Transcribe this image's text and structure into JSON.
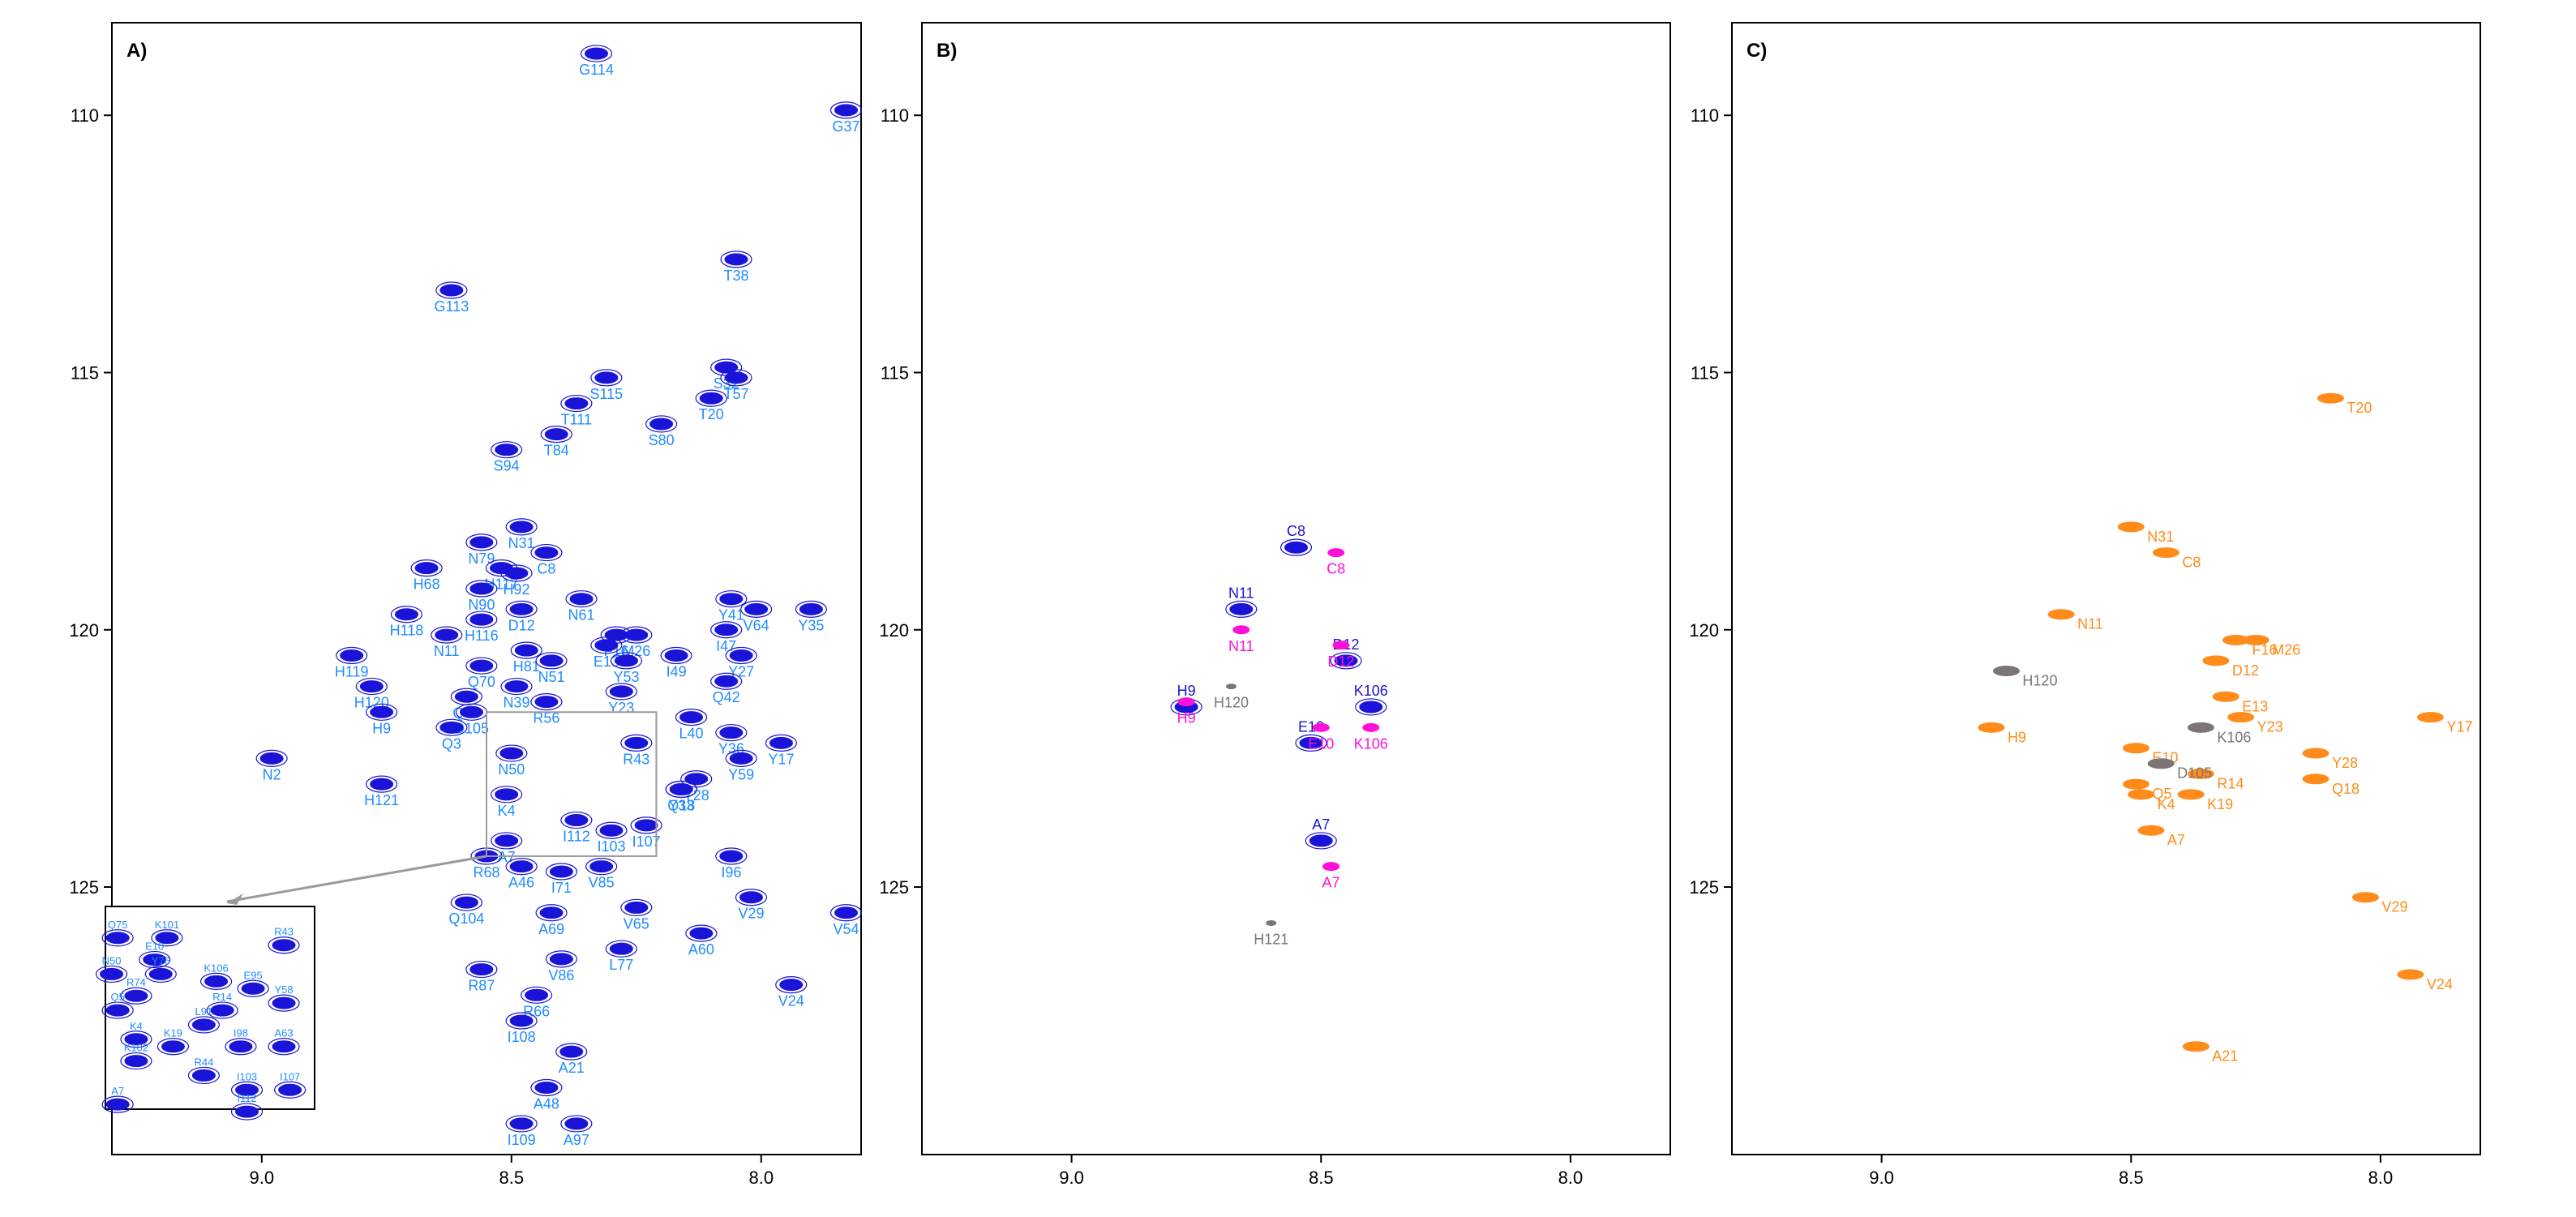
{
  "figure": {
    "x_ticks": [
      "9.0",
      "8.5",
      "8.0"
    ],
    "y_ticks": [
      "110",
      "115",
      "120",
      "125"
    ]
  },
  "colors": {
    "blue": "#1a14d8",
    "magenta": "#ff10d8",
    "label_blue": "#1e8cff",
    "label_darkblue": "#1a14c8",
    "grey": "#7b7575",
    "orange": "#ff8c1a",
    "inset_frame": "#9a9a9a"
  },
  "chart_data": [
    {
      "type": "scatter",
      "panel_label": "A)",
      "xlim": [
        9.3,
        7.8
      ],
      "ylim": [
        130.2,
        108.2
      ],
      "x_ticks": [
        9.0,
        8.5,
        8.0
      ],
      "y_ticks": [
        110,
        115,
        120,
        125
      ],
      "series": [
        {
          "color": "#1a14d8",
          "points": [
            {
              "label": "G114",
              "x": 8.33,
              "y": 108.8
            },
            {
              "label": "G37",
              "x": 7.83,
              "y": 109.9
            },
            {
              "label": "G113",
              "x": 8.62,
              "y": 113.4
            },
            {
              "label": "T38",
              "x": 8.05,
              "y": 112.8
            },
            {
              "label": "S115",
              "x": 8.31,
              "y": 115.1
            },
            {
              "label": "S32",
              "x": 8.07,
              "y": 114.9
            },
            {
              "label": "T111",
              "x": 8.37,
              "y": 115.6
            },
            {
              "label": "T57",
              "x": 8.05,
              "y": 115.1
            },
            {
              "label": "T84",
              "x": 8.41,
              "y": 116.2
            },
            {
              "label": "T20",
              "x": 8.1,
              "y": 115.5
            },
            {
              "label": "S94",
              "x": 8.51,
              "y": 116.5
            },
            {
              "label": "S80",
              "x": 8.2,
              "y": 116.0
            },
            {
              "label": "N31",
              "x": 8.48,
              "y": 118.0
            },
            {
              "label": "N79",
              "x": 8.56,
              "y": 118.3
            },
            {
              "label": "C8",
              "x": 8.43,
              "y": 118.5
            },
            {
              "label": "H68",
              "x": 8.67,
              "y": 118.8
            },
            {
              "label": "H117",
              "x": 8.52,
              "y": 118.8
            },
            {
              "label": "H92",
              "x": 8.49,
              "y": 118.9
            },
            {
              "label": "N90",
              "x": 8.56,
              "y": 119.2
            },
            {
              "label": "N61",
              "x": 8.36,
              "y": 119.4
            },
            {
              "label": "Y41",
              "x": 8.06,
              "y": 119.4
            },
            {
              "label": "Y35",
              "x": 7.9,
              "y": 119.6
            },
            {
              "label": "H118",
              "x": 8.71,
              "y": 119.7
            },
            {
              "label": "H116",
              "x": 8.56,
              "y": 119.8
            },
            {
              "label": "D12",
              "x": 8.48,
              "y": 119.6
            },
            {
              "label": "F16",
              "x": 8.29,
              "y": 120.1
            },
            {
              "label": "M26",
              "x": 8.25,
              "y": 120.1
            },
            {
              "label": "I47",
              "x": 8.07,
              "y": 120.0
            },
            {
              "label": "V64",
              "x": 8.01,
              "y": 119.6
            },
            {
              "label": "H119",
              "x": 8.82,
              "y": 120.5
            },
            {
              "label": "N11",
              "x": 8.63,
              "y": 120.1
            },
            {
              "label": "H81",
              "x": 8.47,
              "y": 120.4
            },
            {
              "label": "E13",
              "x": 8.31,
              "y": 120.3
            },
            {
              "label": "N51",
              "x": 8.42,
              "y": 120.6
            },
            {
              "label": "I49",
              "x": 8.17,
              "y": 120.5
            },
            {
              "label": "Y27",
              "x": 8.04,
              "y": 120.5
            },
            {
              "label": "Q70",
              "x": 8.56,
              "y": 120.7
            },
            {
              "label": "Y53",
              "x": 8.27,
              "y": 120.6
            },
            {
              "label": "N39",
              "x": 8.49,
              "y": 121.1
            },
            {
              "label": "Q42",
              "x": 8.07,
              "y": 121.0
            },
            {
              "label": "H120",
              "x": 8.78,
              "y": 121.1
            },
            {
              "label": "Q73",
              "x": 8.59,
              "y": 121.3
            },
            {
              "label": "R56",
              "x": 8.43,
              "y": 121.4
            },
            {
              "label": "Y23",
              "x": 8.28,
              "y": 121.2
            },
            {
              "label": "H9",
              "x": 8.76,
              "y": 121.6
            },
            {
              "label": "D105",
              "x": 8.58,
              "y": 121.6
            },
            {
              "label": "L40",
              "x": 8.14,
              "y": 121.7
            },
            {
              "label": "Y36",
              "x": 8.06,
              "y": 122.0
            },
            {
              "label": "Y17",
              "x": 7.96,
              "y": 122.2
            },
            {
              "label": "Q3",
              "x": 8.62,
              "y": 121.9
            },
            {
              "label": "R43",
              "x": 8.25,
              "y": 122.2
            },
            {
              "label": "N2",
              "x": 8.98,
              "y": 122.5
            },
            {
              "label": "N50",
              "x": 8.5,
              "y": 122.4
            },
            {
              "label": "Y59",
              "x": 8.04,
              "y": 122.5
            },
            {
              "label": "H121",
              "x": 8.76,
              "y": 123.0
            },
            {
              "label": "Y33",
              "x": 8.16,
              "y": 123.1
            },
            {
              "label": "Y28",
              "x": 8.13,
              "y": 122.9
            },
            {
              "label": "Q18",
              "x": 8.16,
              "y": 123.1
            },
            {
              "label": "K4",
              "x": 8.51,
              "y": 123.2
            },
            {
              "label": "I107",
              "x": 8.23,
              "y": 123.8
            },
            {
              "label": "I112",
              "x": 8.37,
              "y": 123.7
            },
            {
              "label": "I103",
              "x": 8.3,
              "y": 123.9
            },
            {
              "label": "A7",
              "x": 8.51,
              "y": 124.1
            },
            {
              "label": "R68",
              "x": 8.55,
              "y": 124.4
            },
            {
              "label": "I96",
              "x": 8.06,
              "y": 124.4
            },
            {
              "label": "A46",
              "x": 8.48,
              "y": 124.6
            },
            {
              "label": "I71",
              "x": 8.4,
              "y": 124.7
            },
            {
              "label": "V85",
              "x": 8.32,
              "y": 124.6
            },
            {
              "label": "Q104",
              "x": 8.59,
              "y": 125.3
            },
            {
              "label": "V65",
              "x": 8.25,
              "y": 125.4
            },
            {
              "label": "A69",
              "x": 8.42,
              "y": 125.5
            },
            {
              "label": "V29",
              "x": 8.02,
              "y": 125.2
            },
            {
              "label": "V54",
              "x": 7.83,
              "y": 125.5
            },
            {
              "label": "R87",
              "x": 8.56,
              "y": 126.6
            },
            {
              "label": "V86",
              "x": 8.4,
              "y": 126.4
            },
            {
              "label": "L77",
              "x": 8.28,
              "y": 126.2
            },
            {
              "label": "A60",
              "x": 8.12,
              "y": 125.9
            },
            {
              "label": "R66",
              "x": 8.45,
              "y": 127.1
            },
            {
              "label": "V24",
              "x": 7.94,
              "y": 126.9
            },
            {
              "label": "I108",
              "x": 8.48,
              "y": 127.6
            },
            {
              "label": "A21",
              "x": 8.38,
              "y": 128.2
            },
            {
              "label": "A48",
              "x": 8.43,
              "y": 128.9
            },
            {
              "label": "I109",
              "x": 8.48,
              "y": 129.6
            },
            {
              "label": "A97",
              "x": 8.37,
              "y": 129.6
            }
          ]
        }
      ],
      "inset": {
        "x_range": [
          8.55,
          8.21
        ],
        "y_range": [
          121.6,
          124.4
        ],
        "labels": [
          {
            "label": "Q75",
            "x": 8.53,
            "y": 121.9
          },
          {
            "label": "K101",
            "x": 8.45,
            "y": 121.9
          },
          {
            "label": "R43",
            "x": 8.26,
            "y": 122.0
          },
          {
            "label": "E10",
            "x": 8.47,
            "y": 122.2
          },
          {
            "label": "N50",
            "x": 8.54,
            "y": 122.4
          },
          {
            "label": "Y76",
            "x": 8.46,
            "y": 122.4
          },
          {
            "label": "K106",
            "x": 8.37,
            "y": 122.5
          },
          {
            "label": "E95",
            "x": 8.31,
            "y": 122.6
          },
          {
            "label": "R74",
            "x": 8.5,
            "y": 122.7
          },
          {
            "label": "Y58",
            "x": 8.26,
            "y": 122.8
          },
          {
            "label": "Q5",
            "x": 8.53,
            "y": 122.9
          },
          {
            "label": "R14",
            "x": 8.36,
            "y": 122.9
          },
          {
            "label": "L91",
            "x": 8.39,
            "y": 123.1
          },
          {
            "label": "K4",
            "x": 8.5,
            "y": 123.3
          },
          {
            "label": "K19",
            "x": 8.44,
            "y": 123.4
          },
          {
            "label": "I98",
            "x": 8.33,
            "y": 123.4
          },
          {
            "label": "A63",
            "x": 8.26,
            "y": 123.4
          },
          {
            "label": "K102",
            "x": 8.5,
            "y": 123.6
          },
          {
            "label": "R44",
            "x": 8.39,
            "y": 123.8
          },
          {
            "label": "I103",
            "x": 8.32,
            "y": 124.0
          },
          {
            "label": "I107",
            "x": 8.25,
            "y": 124.0
          },
          {
            "label": "A7",
            "x": 8.53,
            "y": 124.2
          },
          {
            "label": "I112",
            "x": 8.32,
            "y": 124.3
          }
        ]
      }
    },
    {
      "type": "scatter",
      "panel_label": "B)",
      "xlim": [
        9.3,
        7.8
      ],
      "ylim": [
        130.2,
        108.2
      ],
      "x_ticks": [
        9.0,
        8.5,
        8.0
      ],
      "y_ticks": [
        110,
        115,
        120,
        125
      ],
      "series": [
        {
          "color": "#1a14d8",
          "points": [
            {
              "label": "C8",
              "x": 8.55,
              "y": 118.4
            },
            {
              "label": "N11",
              "x": 8.66,
              "y": 119.6
            },
            {
              "label": "D12",
              "x": 8.45,
              "y": 120.6
            },
            {
              "label": "H9",
              "x": 8.77,
              "y": 121.5
            },
            {
              "label": "K106",
              "x": 8.4,
              "y": 121.5
            },
            {
              "label": "E10",
              "x": 8.52,
              "y": 122.2
            },
            {
              "label": "A7",
              "x": 8.5,
              "y": 124.1
            }
          ]
        },
        {
          "color": "#ff10d8",
          "points": [
            {
              "label": "C8",
              "x": 8.47,
              "y": 118.5
            },
            {
              "label": "N11",
              "x": 8.66,
              "y": 120.0
            },
            {
              "label": "D12",
              "x": 8.46,
              "y": 120.3
            },
            {
              "label": "H9",
              "x": 8.77,
              "y": 121.4
            },
            {
              "label": "E10",
              "x": 8.5,
              "y": 121.9
            },
            {
              "label": "K106",
              "x": 8.4,
              "y": 121.9
            },
            {
              "label": "A7",
              "x": 8.48,
              "y": 124.6
            }
          ]
        },
        {
          "color": "#7b7575",
          "points": [
            {
              "label": "H120",
              "x": 8.68,
              "y": 121.1
            },
            {
              "label": "H121",
              "x": 8.6,
              "y": 125.7
            }
          ]
        }
      ]
    },
    {
      "type": "scatter",
      "panel_label": "C)",
      "xlim": [
        9.3,
        7.8
      ],
      "ylim": [
        130.2,
        108.2
      ],
      "x_ticks": [
        9.0,
        8.5,
        8.0
      ],
      "y_ticks": [
        110,
        115,
        120,
        125
      ],
      "series": [
        {
          "color": "#ff8c1a",
          "points": [
            {
              "label": "T20",
              "x": 8.1,
              "y": 115.5
            },
            {
              "label": "N31",
              "x": 8.5,
              "y": 118.0
            },
            {
              "label": "C8",
              "x": 8.43,
              "y": 118.5
            },
            {
              "label": "N11",
              "x": 8.64,
              "y": 119.7
            },
            {
              "label": "F16",
              "x": 8.29,
              "y": 120.2
            },
            {
              "label": "M26",
              "x": 8.25,
              "y": 120.2
            },
            {
              "label": "D12",
              "x": 8.33,
              "y": 120.6
            },
            {
              "label": "E13",
              "x": 8.31,
              "y": 121.3
            },
            {
              "label": "Y23",
              "x": 8.28,
              "y": 121.7
            },
            {
              "label": "H9",
              "x": 8.78,
              "y": 121.9
            },
            {
              "label": "Y17",
              "x": 7.9,
              "y": 121.7
            },
            {
              "label": "E10",
              "x": 8.49,
              "y": 122.3
            },
            {
              "label": "Y28",
              "x": 8.13,
              "y": 122.4
            },
            {
              "label": "R14",
              "x": 8.36,
              "y": 122.8
            },
            {
              "label": "Q18",
              "x": 8.13,
              "y": 122.9
            },
            {
              "label": "Q5",
              "x": 8.49,
              "y": 123.0
            },
            {
              "label": "K4",
              "x": 8.48,
              "y": 123.2
            },
            {
              "label": "K19",
              "x": 8.38,
              "y": 123.2
            },
            {
              "label": "A7",
              "x": 8.46,
              "y": 123.9
            },
            {
              "label": "V29",
              "x": 8.03,
              "y": 125.2
            },
            {
              "label": "V24",
              "x": 7.94,
              "y": 126.7
            },
            {
              "label": "A21",
              "x": 8.37,
              "y": 128.1
            }
          ]
        },
        {
          "color": "#7b7575",
          "points": [
            {
              "label": "H120",
              "x": 8.75,
              "y": 120.8
            },
            {
              "label": "K106",
              "x": 8.36,
              "y": 121.9
            },
            {
              "label": "D105",
              "x": 8.44,
              "y": 122.6
            }
          ]
        }
      ]
    }
  ]
}
